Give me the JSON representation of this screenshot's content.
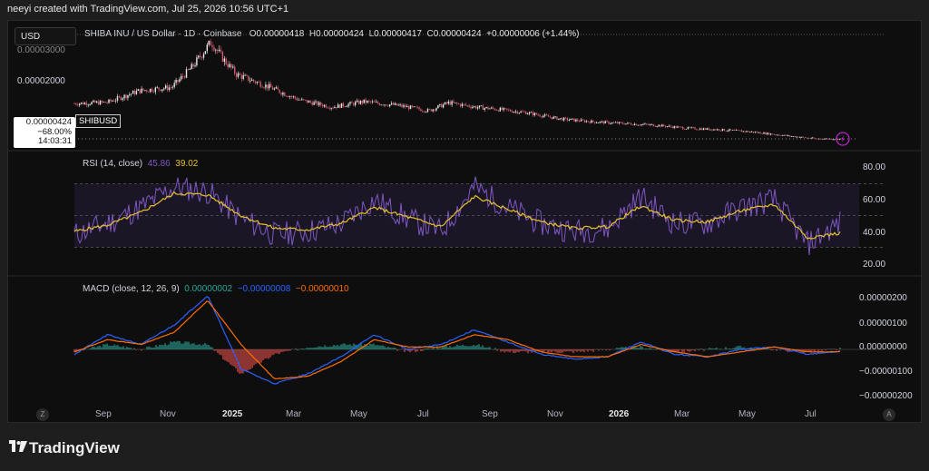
{
  "header": {
    "caption": "neeyi created with TradingView.com, Jul 25, 2026 10:56 UTC+1"
  },
  "toolbar": {
    "currency": "USD"
  },
  "price_pane": {
    "title": "SHIBA INU / US Dollar · 1D · Coinbase",
    "open_label": "O",
    "open": "0.00000418",
    "high_label": "H",
    "high": "0.00000424",
    "low_label": "L",
    "low": "0.00000417",
    "close_label": "C",
    "close": "0.00000424",
    "change": "+0.00000006 (+1.44%)",
    "y_top_label": "0.00003000",
    "y_label": "0.00002000",
    "last_price": "0.00000424",
    "last_change": "−68.00%",
    "countdown": "14:03:31",
    "symbol": "SHIBUSD"
  },
  "rsi_pane": {
    "title": "RSI (14, close)",
    "rsi_value": "45.86",
    "ma_value": "39.02",
    "y_labels": [
      "80.00",
      "60.00",
      "40.00",
      "20.00"
    ]
  },
  "macd_pane": {
    "title": "MACD (close, 12, 26, 9)",
    "hist_value": "0.00000002",
    "macd_value": "−0.00000008",
    "signal_value": "−0.00000010",
    "y_labels": [
      "0.00000200",
      "0.00000100",
      "0.00000000",
      "−0.00000100",
      "−0.00000200"
    ]
  },
  "x_axis": [
    "Sep",
    "Nov",
    "2025",
    "Mar",
    "May",
    "Jul",
    "Sep",
    "Nov",
    "2026",
    "Mar",
    "May",
    "Jul"
  ],
  "corner_buttons": {
    "left": "Z",
    "right": "A"
  },
  "brand": {
    "name": "TradingView"
  },
  "colors": {
    "candle_up": "#e8e8e8",
    "candle_down": "#d05a6e",
    "rsi": "#7e57c2",
    "rsi_ma": "#e6c229",
    "macd": "#2962ff",
    "signal": "#ff6d00",
    "hist_up": "#26a69a",
    "hist_down": "#ef5350"
  },
  "chart_data": [
    {
      "type": "candlestick",
      "title": "SHIBA INU / US Dollar · 1D · Coinbase",
      "x_labels": [
        "Sep",
        "Nov",
        "2025",
        "Mar",
        "May",
        "Jul",
        "Sep",
        "Nov",
        "2026",
        "Mar",
        "May",
        "Jul"
      ],
      "x": [
        "2024-08-01",
        "2024-09-01",
        "2024-10-01",
        "2024-11-01",
        "2024-11-20",
        "2024-12-08",
        "2024-12-20",
        "2025-01-01",
        "2025-02-01",
        "2025-03-01",
        "2025-04-01",
        "2025-05-01",
        "2025-06-01",
        "2025-07-01",
        "2025-07-20",
        "2025-08-15",
        "2025-09-01",
        "2025-10-01",
        "2025-11-01",
        "2025-12-01",
        "2026-01-01",
        "2026-02-01",
        "2026-03-01",
        "2026-04-01",
        "2026-05-01",
        "2026-06-01",
        "2026-07-01",
        "2026-07-25"
      ],
      "close": [
        1.4e-05,
        1.43e-05,
        1.75e-05,
        1.85e-05,
        2.4e-05,
        3.1e-05,
        2.6e-05,
        2.2e-05,
        1.85e-05,
        1.5e-05,
        1.3e-05,
        1.45e-05,
        1.35e-05,
        1.2e-05,
        1.42e-05,
        1.3e-05,
        1.25e-05,
        1.15e-05,
        9.8e-06,
        9e-06,
        8.5e-06,
        8e-06,
        7.2e-06,
        6.8e-06,
        6.2e-06,
        5.2e-06,
        4.3e-06,
        4.24e-06
      ],
      "y_ticks": [
        2e-05,
        3e-05
      ]
    },
    {
      "type": "line",
      "title": "RSI (14, close)",
      "x": [
        "2024-08",
        "2024-09",
        "2024-10",
        "2024-11",
        "2024-12",
        "2025-01",
        "2025-02",
        "2025-03",
        "2025-04",
        "2025-05",
        "2025-06",
        "2025-07",
        "2025-08",
        "2025-09",
        "2025-10",
        "2025-11",
        "2025-12",
        "2026-01",
        "2026-02",
        "2026-03",
        "2026-04",
        "2026-05",
        "2026-06",
        "2026-07"
      ],
      "series": [
        {
          "name": "RSI",
          "values": [
            38,
            45,
            55,
            68,
            65,
            48,
            38,
            40,
            45,
            60,
            48,
            40,
            68,
            55,
            45,
            40,
            42,
            62,
            45,
            45,
            55,
            60,
            32,
            45.86
          ]
        },
        {
          "name": "MA",
          "values": [
            40,
            44,
            52,
            64,
            63,
            50,
            42,
            41,
            45,
            55,
            49,
            43,
            62,
            54,
            46,
            42,
            43,
            56,
            47,
            46,
            53,
            57,
            36,
            39.02
          ]
        }
      ],
      "ylim": [
        20,
        80
      ],
      "y_ticks": [
        20,
        40,
        60,
        80
      ]
    },
    {
      "type": "line",
      "title": "MACD (close, 12, 26, 9)",
      "x": [
        "2024-08",
        "2024-09",
        "2024-10",
        "2024-11",
        "2024-12",
        "2025-01",
        "2025-02",
        "2025-03",
        "2025-04",
        "2025-05",
        "2025-06",
        "2025-07",
        "2025-08",
        "2025-09",
        "2025-10",
        "2025-11",
        "2025-12",
        "2026-01",
        "2026-02",
        "2026-03",
        "2026-04",
        "2026-05",
        "2026-06",
        "2026-07"
      ],
      "series": [
        {
          "name": "MACD",
          "values": [
            -2e-07,
            6e-07,
            2e-07,
            1e-06,
            2.2e-06,
            -8e-07,
            -1.4e-06,
            -1e-06,
            -3e-07,
            6e-07,
            0.0,
            2e-07,
            8e-07,
            3e-07,
            -2e-07,
            -4e-07,
            -3e-07,
            3e-07,
            -2e-07,
            -3e-07,
            0.0,
            1e-07,
            -2e-07,
            -8e-08
          ]
        },
        {
          "name": "Signal",
          "values": [
            -1e-07,
            4e-07,
            2e-07,
            7e-07,
            2e-06,
            2e-07,
            -1.2e-06,
            -1.1e-06,
            -5e-07,
            4e-07,
            1e-07,
            1e-07,
            6e-07,
            4e-07,
            -1e-07,
            -3e-07,
            -3e-07,
            2e-07,
            -1e-07,
            -3e-07,
            -1e-07,
            1e-07,
            -1e-07,
            -1e-07
          ]
        },
        {
          "name": "Histogram",
          "values": [
            -1e-07,
            2e-07,
            0.0,
            3e-07,
            2e-07,
            -1e-06,
            -2e-07,
            1e-07,
            2e-07,
            2e-07,
            -1e-07,
            1e-07,
            2e-07,
            -1e-07,
            -1e-07,
            -1e-07,
            0.0,
            1e-07,
            -1e-07,
            0.0,
            1e-07,
            0.0,
            -1e-07,
            2e-08
          ]
        }
      ],
      "y_ticks": [
        -2e-06,
        -1e-06,
        0,
        1e-06,
        2e-06
      ]
    }
  ]
}
